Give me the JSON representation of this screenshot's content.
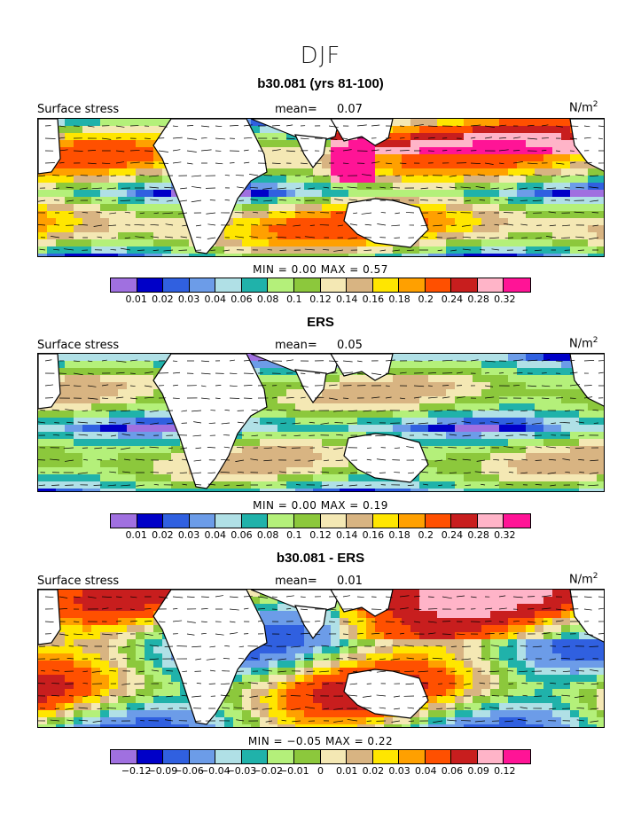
{
  "season": "DJF",
  "panels": [
    {
      "title": "b30.081 (yrs 81-100)",
      "left_label": "Surface stress",
      "mean_label": "mean=",
      "mean_value": "0.07",
      "units_base": "N/m",
      "units_exp": "2",
      "stats": "MIN =    0.00  MAX =    0.57",
      "colorbar_colors": [
        "#a070e0",
        "#0000c8",
        "#3060e0",
        "#6c9ce8",
        "#b0e0e6",
        "#20b2aa",
        "#b4f07a",
        "#8cc83c",
        "#f4e8b4",
        "#d8b482",
        "#ffe600",
        "#ffa000",
        "#ff5000",
        "#c81e1e",
        "#ffb4c8",
        "#ff1496"
      ],
      "colorbar_ticks": [
        "0.01",
        "0.02",
        "0.03",
        "0.04",
        "0.06",
        "0.08",
        "0.1",
        "0.12",
        "0.14",
        "0.16",
        "0.18",
        "0.2",
        "0.24",
        "0.28",
        "0.32"
      ]
    },
    {
      "title": "ERS",
      "left_label": "Surface stress",
      "mean_label": "mean=",
      "mean_value": "0.05",
      "units_base": "N/m",
      "units_exp": "2",
      "stats": "MIN =    0.00  MAX =    0.19",
      "colorbar_colors": [
        "#a070e0",
        "#0000c8",
        "#3060e0",
        "#6c9ce8",
        "#b0e0e6",
        "#20b2aa",
        "#b4f07a",
        "#8cc83c",
        "#f4e8b4",
        "#d8b482",
        "#ffe600",
        "#ffa000",
        "#ff5000",
        "#c81e1e",
        "#ffb4c8",
        "#ff1496"
      ],
      "colorbar_ticks": [
        "0.01",
        "0.02",
        "0.03",
        "0.04",
        "0.06",
        "0.08",
        "0.1",
        "0.12",
        "0.14",
        "0.16",
        "0.18",
        "0.2",
        "0.24",
        "0.28",
        "0.32"
      ]
    },
    {
      "title": "b30.081 - ERS",
      "left_label": "Surface stress",
      "mean_label": "mean=",
      "mean_value": "0.01",
      "units_base": "N/m",
      "units_exp": "2",
      "stats": "MIN =  −0.05  MAX =    0.22",
      "colorbar_colors": [
        "#a070e0",
        "#0000c8",
        "#3060e0",
        "#6c9ce8",
        "#b0e0e6",
        "#20b2aa",
        "#b4f07a",
        "#8cc83c",
        "#f4e8b4",
        "#d8b482",
        "#ffe600",
        "#ffa000",
        "#ff5000",
        "#c81e1e",
        "#ffb4c8",
        "#ff1496"
      ],
      "colorbar_ticks": [
        "−0.12",
        "−0.09",
        "−0.06",
        "−0.04",
        "−0.03",
        "−0.02",
        "−0.01",
        "0",
        "0.01",
        "0.02",
        "0.03",
        "0.04",
        "0.06",
        "0.09",
        "0.12"
      ]
    }
  ],
  "chart_data": [
    {
      "type": "heatmap",
      "title": "b30.081 (yrs 81-100)",
      "variable": "Surface stress",
      "units": "N/m2",
      "mean": 0.07,
      "min": 0.0,
      "max": 0.57,
      "contour_levels": [
        0.01,
        0.02,
        0.03,
        0.04,
        0.06,
        0.08,
        0.1,
        0.12,
        0.14,
        0.16,
        0.18,
        0.2,
        0.24,
        0.28,
        0.32
      ]
    },
    {
      "type": "heatmap",
      "title": "ERS",
      "variable": "Surface stress",
      "units": "N/m2",
      "mean": 0.05,
      "min": 0.0,
      "max": 0.19,
      "contour_levels": [
        0.01,
        0.02,
        0.03,
        0.04,
        0.06,
        0.08,
        0.1,
        0.12,
        0.14,
        0.16,
        0.18,
        0.2,
        0.24,
        0.28,
        0.32
      ]
    },
    {
      "type": "heatmap",
      "title": "b30.081 - ERS",
      "variable": "Surface stress",
      "units": "N/m2",
      "mean": 0.01,
      "min": -0.05,
      "max": 0.22,
      "contour_levels": [
        -0.12,
        -0.09,
        -0.06,
        -0.04,
        -0.03,
        -0.02,
        -0.01,
        0,
        0.01,
        0.02,
        0.03,
        0.04,
        0.06,
        0.09,
        0.12
      ]
    }
  ]
}
